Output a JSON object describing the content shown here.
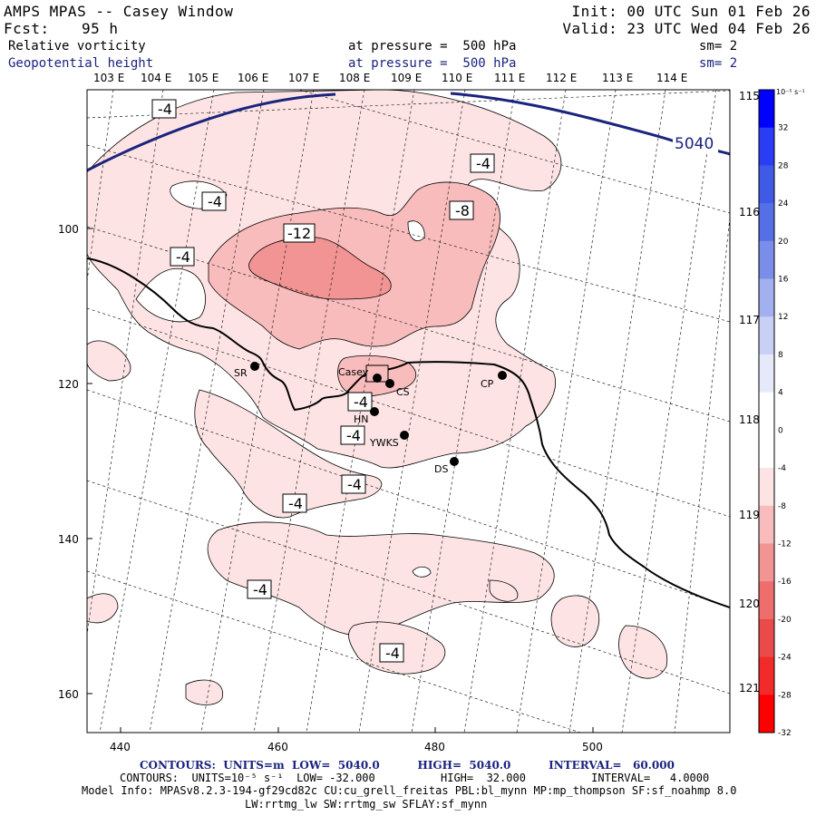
{
  "header": {
    "title": "AMPS MPAS -- Casey Window",
    "fcst_label": "Fcst:",
    "fcst_value": "95 h",
    "init": "Init: 00 UTC Sun 01 Feb 26",
    "valid": "Valid: 23 UTC Wed 04 Feb 26",
    "field1_name": "Relative vorticity",
    "field1_level": "at pressure =  500 hPa",
    "field1_sm": "sm= 2",
    "field2_name": "Geopotential height",
    "field2_level": "at pressure =  500 hPa",
    "field2_sm": "sm= 2"
  },
  "map": {
    "top_lon_labels": [
      "103 E",
      "104 E",
      "105 E",
      "106 E",
      "107 E",
      "108 E",
      "109 E",
      "110 E",
      "111 E",
      "112 E",
      "113 E",
      "114 E"
    ],
    "right_lon_labels": [
      "115 E",
      "116 E",
      "117 E",
      "118 E",
      "119 E",
      "120 E",
      "121 E"
    ],
    "x_ticks": [
      "440",
      "460",
      "480",
      "500"
    ],
    "y_ticks": [
      "100",
      "120",
      "140",
      "160"
    ],
    "stations": [
      "SR",
      "Casey",
      "CS",
      "HN",
      "YWKS",
      "CP",
      "DS"
    ],
    "vorticity_labels": [
      "-4",
      "-4",
      "-4",
      "-8",
      "-12",
      "-4",
      "-4",
      "-4",
      "-4",
      "-4",
      "-4",
      "-4"
    ],
    "height_label": "5040",
    "colors": {
      "shade_light": "#fde3e3",
      "shade_mid": "#f9bcbc",
      "shade_dark": "#f29494",
      "height_contour": "#1a237e",
      "coast": "#000000"
    }
  },
  "colorbar": {
    "unit": "10⁻⁵ s⁻¹",
    "ticks": [
      "32",
      "28",
      "24",
      "20",
      "16",
      "12",
      "8",
      "4",
      "0",
      "-4",
      "-8",
      "-12",
      "-16",
      "-20",
      "-24",
      "-28",
      "-32"
    ],
    "colors": [
      "#0000ff",
      "#2a3df5",
      "#3f5ae6",
      "#5570e6",
      "#7a8de8",
      "#a3b0ef",
      "#c9d0f5",
      "#e6e9fa",
      "#ffffff",
      "#ffffff",
      "#fde3e3",
      "#f9bcbc",
      "#f29494",
      "#ee6e6e",
      "#ea4a4a",
      "#f32a2a",
      "#ff0000"
    ]
  },
  "footer": {
    "contours1": "CONTOURS:  UNITS=m  LOW=  5040.0          HIGH=  5040.0          INTERVAL=   60.000",
    "contours2": "CONTOURS:  UNITS=10⁻⁵ s⁻¹  LOW= -32.000          HIGH=  32.000          INTERVAL=   4.0000",
    "model_info": "Model Info: MPASv8.2.3-194-gf29cd82c CU:cu_grell_freitas PBL:bl_mynn MP:mp_thompson SF:sf_noahmp 8.0",
    "model_info2": "LW:rrtmg_lw SW:rrtmg_sw SFLAY:sf_mynn"
  }
}
